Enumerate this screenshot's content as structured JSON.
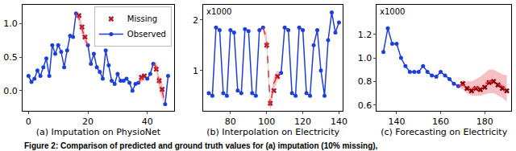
{
  "chart_data": [
    {
      "type": "line",
      "x_label": "(a) Imputation on PhysioNet",
      "legend": "upper right",
      "grid": false,
      "xlim": [
        -2,
        49
      ],
      "xticks": [
        0,
        20,
        40
      ],
      "ylim": [
        -0.3,
        1.28
      ],
      "yticks": [
        {
          "value": 0,
          "label": "0.0"
        },
        {
          "value": 0.5,
          "label": "0.5"
        },
        {
          "value": 1,
          "label": "1.0"
        }
      ],
      "x": [
        0,
        1,
        2,
        3,
        4,
        5,
        6,
        7,
        8,
        9,
        10,
        11,
        12,
        13,
        14,
        15,
        16,
        17,
        18,
        19,
        20,
        21,
        22,
        23,
        24,
        25,
        26,
        27,
        28,
        29,
        30,
        31,
        32,
        33,
        34,
        35,
        36,
        37,
        38,
        39,
        40,
        41,
        42,
        43,
        44,
        45,
        46,
        47
      ],
      "series": [
        {
          "name": "Missing",
          "color": "#b2182b",
          "marker": "x",
          "line_style": "none",
          "values": [
            null,
            null,
            null,
            null,
            null,
            null,
            null,
            null,
            null,
            null,
            null,
            null,
            null,
            null,
            null,
            null,
            null,
            1.12,
            0.95,
            0.8,
            null,
            null,
            null,
            null,
            null,
            null,
            null,
            null,
            null,
            null,
            null,
            null,
            null,
            null,
            null,
            null,
            null,
            null,
            0.2,
            0.22,
            null,
            null,
            null,
            0.32,
            0.15,
            0.02,
            null,
            null
          ]
        },
        {
          "name": "Observed",
          "color": "#1c3fd8",
          "marker": "circle",
          "line_style": "solid",
          "values": [
            0.22,
            0.13,
            0.18,
            0.3,
            0.22,
            0.35,
            0.48,
            0.22,
            0.68,
            0.55,
            0.68,
            0.58,
            0.35,
            0.6,
            0.82,
            0.8,
            1.15,
            null,
            null,
            null,
            0.68,
            0.4,
            0.55,
            0.35,
            0.28,
            0.18,
            0.6,
            0.38,
            0.15,
            0.1,
            0.25,
            0.15,
            0.15,
            0.18,
            0.12,
            0.0,
            0.1,
            0.12,
            null,
            null,
            0.18,
            0.25,
            0.4,
            null,
            null,
            null,
            -0.2,
            0.22
          ]
        },
        {
          "color": "#e8303a",
          "marker": "none",
          "line_style": "dashed",
          "values": [
            null,
            null,
            null,
            null,
            null,
            null,
            null,
            null,
            null,
            null,
            null,
            null,
            null,
            null,
            null,
            null,
            1.15,
            1.08,
            0.92,
            0.78,
            0.68,
            null,
            null,
            null,
            null,
            null,
            null,
            null,
            null,
            null,
            null,
            null,
            null,
            null,
            null,
            null,
            null,
            0.12,
            0.18,
            0.2,
            0.18,
            null,
            0.4,
            0.36,
            0.12,
            0.0,
            -0.2,
            null
          ],
          "lower": [
            null,
            null,
            null,
            null,
            null,
            null,
            null,
            null,
            null,
            null,
            null,
            null,
            null,
            null,
            null,
            null,
            1.15,
            1.0,
            0.84,
            0.7,
            0.68,
            null,
            null,
            null,
            null,
            null,
            null,
            null,
            null,
            null,
            null,
            null,
            null,
            null,
            null,
            null,
            null,
            0.12,
            0.13,
            0.15,
            0.18,
            null,
            0.4,
            0.28,
            0.02,
            -0.12,
            -0.2,
            null
          ],
          "upper": [
            null,
            null,
            null,
            null,
            null,
            null,
            null,
            null,
            null,
            null,
            null,
            null,
            null,
            null,
            null,
            null,
            1.15,
            1.16,
            1.0,
            0.86,
            0.68,
            null,
            null,
            null,
            null,
            null,
            null,
            null,
            null,
            null,
            null,
            null,
            null,
            null,
            null,
            null,
            null,
            0.12,
            0.23,
            0.25,
            0.18,
            null,
            0.4,
            0.44,
            0.22,
            0.12,
            -0.2,
            null
          ]
        }
      ]
    },
    {
      "type": "line",
      "x_label": "(b) Interpolation on Electricity",
      "grid": false,
      "annotations": [
        {
          "text": "x1000"
        }
      ],
      "xlim": [
        65,
        142
      ],
      "xticks": [
        80,
        100,
        120,
        140
      ],
      "ylim": [
        0.2,
        2.3
      ],
      "yticks": [
        1,
        2
      ],
      "x": [
        68,
        70,
        72,
        74,
        76,
        78,
        80,
        82,
        84,
        86,
        88,
        90,
        92,
        94,
        96,
        98,
        100,
        102,
        104,
        106,
        108,
        110,
        112,
        114,
        116,
        118,
        120,
        122,
        124,
        126,
        128,
        130,
        132,
        134,
        136,
        138,
        140
      ],
      "series": [
        {
          "name": "Missing",
          "color": "#b2182b",
          "marker": "x",
          "line_style": "none",
          "values": [
            null,
            null,
            null,
            null,
            null,
            null,
            null,
            null,
            null,
            null,
            null,
            null,
            null,
            null,
            null,
            null,
            1.5,
            0.35,
            0.6,
            0.88,
            null,
            null,
            null,
            null,
            null,
            null,
            null,
            null,
            null,
            null,
            null,
            null,
            null,
            null,
            null,
            null,
            null
          ]
        },
        {
          "name": "Observed",
          "color": "#1c3fd8",
          "marker": "circle",
          "line_style": "solid",
          "values": [
            0.55,
            0.5,
            1.85,
            1.8,
            0.55,
            0.5,
            1.8,
            1.75,
            0.6,
            0.55,
            1.82,
            1.78,
            0.55,
            0.5,
            1.8,
            1.85,
            null,
            null,
            null,
            null,
            0.95,
            1.85,
            1.8,
            0.55,
            0.5,
            1.85,
            1.8,
            0.55,
            0.5,
            1.5,
            1.8,
            1.0,
            0.5,
            1.6,
            2.15,
            1.75,
            1.95
          ]
        },
        {
          "color": "#e8303a",
          "marker": "none",
          "line_style": "dashed",
          "values": [
            null,
            null,
            null,
            null,
            null,
            null,
            null,
            null,
            null,
            null,
            null,
            null,
            null,
            null,
            null,
            1.85,
            1.6,
            0.3,
            0.75,
            0.9,
            0.95,
            null,
            null,
            null,
            null,
            null,
            null,
            null,
            null,
            null,
            null,
            null,
            null,
            null,
            null,
            null,
            null
          ],
          "lower": [
            null,
            null,
            null,
            null,
            null,
            null,
            null,
            null,
            null,
            null,
            null,
            null,
            null,
            null,
            null,
            1.85,
            1.45,
            0.2,
            0.62,
            0.8,
            0.95,
            null,
            null,
            null,
            null,
            null,
            null,
            null,
            null,
            null,
            null,
            null,
            null,
            null,
            null,
            null,
            null
          ],
          "upper": [
            null,
            null,
            null,
            null,
            null,
            null,
            null,
            null,
            null,
            null,
            null,
            null,
            null,
            null,
            null,
            1.85,
            1.75,
            0.42,
            0.88,
            1.0,
            0.95,
            null,
            null,
            null,
            null,
            null,
            null,
            null,
            null,
            null,
            null,
            null,
            null,
            null,
            null,
            null,
            null
          ]
        }
      ]
    },
    {
      "type": "line",
      "x_label": "(c) Forecasting on Electricity",
      "grid": false,
      "annotations": [
        {
          "text": "x1000"
        }
      ],
      "xlim": [
        131,
        192
      ],
      "xticks": [
        140,
        160,
        180
      ],
      "ylim": [
        0.55,
        1.45
      ],
      "yticks": [
        0.6,
        0.8,
        {
          "value": 1,
          "label": "1.0"
        },
        1.2
      ],
      "x": [
        134,
        136,
        138,
        140,
        142,
        144,
        146,
        148,
        150,
        152,
        154,
        156,
        158,
        160,
        162,
        164,
        166,
        168,
        170,
        172,
        174,
        176,
        178,
        180,
        182,
        184,
        186,
        188,
        190
      ],
      "series": [
        {
          "name": "Missing",
          "color": "#8b0000",
          "marker": "x",
          "line_style": "none",
          "values": [
            null,
            null,
            null,
            null,
            null,
            null,
            null,
            null,
            null,
            null,
            null,
            null,
            null,
            null,
            null,
            null,
            null,
            null,
            0.78,
            0.74,
            0.72,
            0.74,
            0.73,
            0.75,
            0.79,
            0.8,
            0.77,
            0.74,
            0.72
          ]
        },
        {
          "name": "Observed",
          "color": "#1c3fd8",
          "marker": "circle",
          "line_style": "solid",
          "values": [
            1.05,
            1.25,
            1.12,
            1.12,
            1.0,
            0.93,
            0.88,
            0.88,
            0.88,
            0.93,
            0.88,
            0.85,
            0.84,
            0.88,
            0.85,
            0.82,
            0.78,
            0.76,
            null,
            null,
            null,
            null,
            null,
            null,
            null,
            null,
            null,
            null,
            null
          ]
        },
        {
          "color": "#e8303a",
          "marker": "none",
          "line_style": "dashed",
          "values": [
            null,
            null,
            null,
            null,
            null,
            null,
            null,
            null,
            null,
            null,
            null,
            null,
            null,
            null,
            null,
            null,
            null,
            0.76,
            0.77,
            0.75,
            0.74,
            0.75,
            0.76,
            0.78,
            0.8,
            0.8,
            0.78,
            0.76,
            0.74
          ],
          "lower": [
            null,
            null,
            null,
            null,
            null,
            null,
            null,
            null,
            null,
            null,
            null,
            null,
            null,
            null,
            null,
            null,
            null,
            0.76,
            0.73,
            0.7,
            0.68,
            0.68,
            0.68,
            0.69,
            0.7,
            0.7,
            0.68,
            0.66,
            0.63
          ],
          "upper": [
            null,
            null,
            null,
            null,
            null,
            null,
            null,
            null,
            null,
            null,
            null,
            null,
            null,
            null,
            null,
            null,
            null,
            0.76,
            0.81,
            0.8,
            0.8,
            0.82,
            0.84,
            0.87,
            0.9,
            0.9,
            0.88,
            0.86,
            0.85
          ]
        }
      ]
    }
  ],
  "caption": "Figure 2: Comparison of predicted and ground truth values for (a) imputation (10% missing),"
}
